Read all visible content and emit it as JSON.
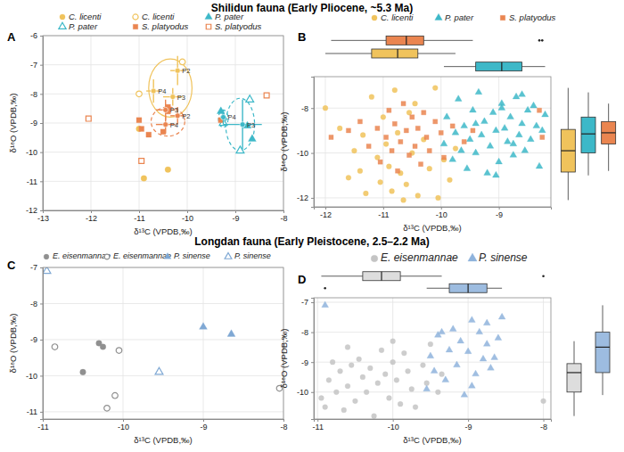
{
  "chart_data": [
    {
      "type": "scatter",
      "title": "Shilidun fauna (Early Pliocene, ~5.3 Ma)",
      "label": "A",
      "x_label": "δ¹³C (VPDB,‰)",
      "y_label": "δ¹⁸O (VPDB,‰)",
      "xlim": [
        -13,
        -8
      ],
      "xticks": [
        -13,
        -12,
        -11,
        -10,
        -9,
        -8
      ],
      "ylim": [
        -12,
        -6
      ],
      "yticks": [
        -12,
        -11,
        -10,
        -9,
        -8,
        -7,
        -6
      ],
      "grid": true,
      "legend": "top",
      "series": [
        {
          "name": "C. licenti",
          "color": "#F0C35C",
          "marker": "circle",
          "x": [
            -11.0,
            -10.9,
            -10.4
          ],
          "y": [
            -9.2,
            -10.9,
            -10.6
          ]
        },
        {
          "name": "C. licenti",
          "color": "#F0C35C",
          "marker": "open-circle",
          "x": [
            -11.0,
            -10.1
          ],
          "y": [
            -8.0,
            -6.9
          ]
        },
        {
          "name": "P. pater",
          "color": "#3DB8C8",
          "marker": "triangle",
          "x": [
            -9.3,
            -9.25,
            -8.75,
            -8.65
          ],
          "y": [
            -8.6,
            -8.8,
            -9.1,
            -9.55
          ]
        },
        {
          "name": "P. pater",
          "color": "#3DB8C8",
          "marker": "open-triangle",
          "x": [
            -8.7,
            -8.9,
            -9.25
          ],
          "y": [
            -8.2,
            -9.95,
            -9.0
          ]
        },
        {
          "name": "S. platyodus",
          "color": "#EA8550",
          "marker": "square",
          "x": [
            -11.0,
            -10.95,
            -10.8,
            -10.5,
            -10.4,
            -10.4,
            -9.3
          ],
          "y": [
            -8.9,
            -9.2,
            -9.4,
            -9.3,
            -8.6,
            -8.45,
            -8.9
          ]
        },
        {
          "name": "S. platyodus",
          "color": "#EA8550",
          "marker": "open-square",
          "x": [
            -12.05,
            -10.95,
            -8.35
          ],
          "y": [
            -8.85,
            -10.3,
            -8.05
          ]
        }
      ],
      "groups": [
        {
          "label": "P2",
          "color": "#F0C35C",
          "x": -10.2,
          "y": -7.2,
          "xerr": 0.15,
          "yerr": 0.5
        },
        {
          "label": "P3",
          "color": "#F0C35C",
          "x": -10.3,
          "y": -8.1,
          "xerr": 0.2,
          "yerr": 0.3
        },
        {
          "label": "P4",
          "color": "#F0C35C",
          "x": -10.7,
          "y": -7.9,
          "xerr": 0.15,
          "yerr": 0.4
        },
        {
          "label": "P2",
          "color": "#EA8550",
          "x": -10.2,
          "y": -8.75,
          "xerr": 0.15,
          "yerr": 0.3
        },
        {
          "label": "P3",
          "color": "#EA8550",
          "x": -10.45,
          "y": -8.55,
          "xerr": 0.2,
          "yerr": 0.35
        },
        {
          "label": "P4",
          "color": "#EA8550",
          "x": -10.45,
          "y": -9.05,
          "xerr": 0.2,
          "yerr": 0.3
        },
        {
          "label": "P3",
          "color": "#3DB8C8",
          "x": -8.85,
          "y": -9.05,
          "xerr": 0.4,
          "yerr": 0.85
        },
        {
          "label": "P4",
          "color": "#3DB8C8",
          "x": -9.25,
          "y": -8.8,
          "xerr": 0.05,
          "yerr": 0.25
        }
      ],
      "ellipses": [
        {
          "color": "#F0C35C",
          "line_style": "solid",
          "cx": -10.35,
          "cy": -7.8,
          "rx": 0.45,
          "ry": 1.0
        },
        {
          "color": "#EA8550",
          "line_style": "dashed",
          "cx": -10.4,
          "cy": -8.95,
          "rx": 0.35,
          "ry": 0.5
        },
        {
          "color": "#3DB8C8",
          "line_style": "dashed",
          "cx": -8.9,
          "cy": -9.05,
          "rx": 0.3,
          "ry": 0.9
        },
        {
          "color": "#3DB8C8",
          "line_style": "dashed",
          "cx": -9.25,
          "cy": -8.85,
          "rx": 0.1,
          "ry": 0.3
        }
      ]
    },
    {
      "type": "scatter",
      "label": "B",
      "x_label": "δ¹³C (VPDB,‰)",
      "y_label": "δ¹⁸O (VPDB,‰)",
      "xlim": [
        -12.2,
        -8.1
      ],
      "xticks": [
        -12,
        -11,
        -10,
        -9
      ],
      "ylim": [
        -12.4,
        -6.6
      ],
      "yticks": [
        -12,
        -10,
        -8
      ],
      "grid": true,
      "legend": "top",
      "series": [
        {
          "name": "C. licenti",
          "color": "#F0C35C",
          "marker": "circle",
          "x": [
            -12.0,
            -11.75,
            -11.5,
            -11.4,
            -11.3,
            -11.2,
            -11.1,
            -11.05,
            -11.0,
            -10.95,
            -10.9,
            -10.85,
            -10.8,
            -10.75,
            -10.7,
            -10.6,
            -10.55,
            -10.5,
            -10.45,
            -10.4,
            -10.3,
            -10.2,
            -10.1,
            -10.05,
            -9.95,
            -9.85,
            -9.75,
            -11.6,
            -11.35,
            -10.65
          ],
          "y": [
            -8.0,
            -8.9,
            -9.9,
            -10.8,
            -11.8,
            -7.5,
            -10.2,
            -11.3,
            -8.4,
            -9.6,
            -10.6,
            -11.7,
            -7.2,
            -9.1,
            -10.9,
            -11.4,
            -8.2,
            -10.0,
            -7.8,
            -11.9,
            -9.4,
            -10.7,
            -7.1,
            -12.0,
            -10.3,
            -11.2,
            -9.8,
            -11.1,
            -9.2,
            -12.1
          ]
        },
        {
          "name": "P. pater",
          "color": "#3DB8C8",
          "marker": "triangle",
          "x": [
            -9.95,
            -9.9,
            -9.8,
            -9.75,
            -9.7,
            -9.6,
            -9.55,
            -9.5,
            -9.45,
            -9.4,
            -9.35,
            -9.3,
            -9.25,
            -9.2,
            -9.15,
            -9.1,
            -9.05,
            -9.0,
            -8.95,
            -8.9,
            -8.85,
            -8.8,
            -8.75,
            -8.7,
            -8.65,
            -8.6,
            -8.55,
            -8.5,
            -8.45,
            -8.4,
            -8.35,
            -8.3,
            -8.25,
            -8.2,
            -9.65,
            -9.05,
            -8.6,
            -8.95,
            -9.4,
            -8.75
          ],
          "y": [
            -9.6,
            -8.4,
            -10.3,
            -9.1,
            -7.6,
            -8.8,
            -10.7,
            -9.4,
            -8.1,
            -10.0,
            -7.3,
            -9.2,
            -8.6,
            -10.9,
            -9.7,
            -8.2,
            -9.0,
            -10.4,
            -7.8,
            -8.9,
            -9.5,
            -8.4,
            -10.1,
            -7.5,
            -9.2,
            -8.7,
            -9.9,
            -8.1,
            -9.4,
            -7.9,
            -8.8,
            -10.6,
            -9.0,
            -8.3,
            -9.9,
            -11.0,
            -7.4,
            -8.0,
            -8.7,
            -9.6
          ]
        },
        {
          "name": "S. platyodus",
          "color": "#EA8550",
          "marker": "square",
          "x": [
            -11.9,
            -11.6,
            -11.4,
            -11.25,
            -11.1,
            -11.05,
            -10.95,
            -10.9,
            -10.85,
            -10.8,
            -10.75,
            -10.7,
            -10.65,
            -10.6,
            -10.55,
            -10.5,
            -10.45,
            -10.4,
            -10.35,
            -10.3,
            -10.25,
            -10.2,
            -10.1,
            -10.0,
            -9.95,
            -9.8,
            -9.6,
            -9.45,
            -8.3,
            -8.25
          ],
          "y": [
            -9.3,
            -9.0,
            -8.6,
            -9.7,
            -8.9,
            -10.4,
            -9.3,
            -8.1,
            -9.9,
            -8.7,
            -10.8,
            -9.5,
            -7.8,
            -9.0,
            -10.1,
            -8.4,
            -9.7,
            -8.9,
            -10.5,
            -8.2,
            -9.3,
            -9.9,
            -8.6,
            -9.1,
            -10.2,
            -8.8,
            -9.5,
            -9.0,
            -8.1,
            -9.3
          ]
        }
      ],
      "x_boxplots": [
        {
          "color": "#EA8550",
          "min": -11.9,
          "q1": -10.95,
          "median": -10.6,
          "q3": -10.3,
          "max": -9.45,
          "outliers": [
            -8.3,
            -8.25
          ]
        },
        {
          "color": "#F0C35C",
          "min": -12.0,
          "q1": -11.2,
          "median": -10.75,
          "q3": -10.4,
          "max": -9.75,
          "outliers": []
        },
        {
          "color": "#3DB8C8",
          "min": -9.95,
          "q1": -9.4,
          "median": -8.95,
          "q3": -8.6,
          "max": -8.2,
          "outliers": []
        }
      ],
      "y_boxplots": [
        {
          "color": "#F0C35C",
          "min": -12.1,
          "q1": -10.85,
          "median": -9.9,
          "q3": -8.95,
          "max": -7.1,
          "outliers": []
        },
        {
          "color": "#3DB8C8",
          "min": -11.0,
          "q1": -10.0,
          "median": -9.15,
          "q3": -8.4,
          "max": -7.3,
          "outliers": []
        },
        {
          "color": "#EA8550",
          "min": -10.8,
          "q1": -9.6,
          "median": -9.1,
          "q3": -8.6,
          "max": -7.8,
          "outliers": []
        }
      ]
    },
    {
      "type": "scatter",
      "title": "Longdan fauna (Early Pleistocene, 2.5–2.2 Ma)",
      "label": "C",
      "x_label": "δ¹³C (VPDB,‰)",
      "y_label": "δ¹⁸O (VPDB,‰)",
      "xlim": [
        -11,
        -8
      ],
      "xticks": [
        -11,
        -10,
        -9,
        -8
      ],
      "ylim": [
        -11.2,
        -7
      ],
      "yticks": [
        -11,
        -10,
        -9,
        -8,
        -7
      ],
      "grid": true,
      "legend": "top",
      "series": [
        {
          "name": "E. eisenmannae",
          "color": "#909090",
          "marker": "circle",
          "x": [
            -10.5,
            -10.3,
            -10.25
          ],
          "y": [
            -9.9,
            -9.1,
            -9.2
          ]
        },
        {
          "name": "E. eisenmannae",
          "color": "#909090",
          "marker": "open-circle",
          "x": [
            -10.85,
            -10.05,
            -10.1,
            -10.2,
            -8.05
          ],
          "y": [
            -9.2,
            -9.3,
            -10.55,
            -10.9,
            -10.35
          ]
        },
        {
          "name": "P. sinense",
          "color": "#7FA8D4",
          "marker": "triangle",
          "x": [
            -9.0,
            -8.65
          ],
          "y": [
            -8.65,
            -8.85
          ]
        },
        {
          "name": "P. sinense",
          "color": "#7FA8D4",
          "marker": "open-triangle",
          "x": [
            -10.95,
            -9.55
          ],
          "y": [
            -7.1,
            -9.9
          ]
        }
      ]
    },
    {
      "type": "scatter",
      "label": "D",
      "x_label": "δ¹³C (VPDB,‰)",
      "y_label": "δ¹⁸O (VPDB,‰)",
      "xlim": [
        -11.05,
        -7.9
      ],
      "xticks": [
        -11,
        -10,
        -9,
        -8
      ],
      "ylim": [
        -10.9,
        -6.85
      ],
      "yticks": [
        -10,
        -9,
        -8,
        -7
      ],
      "grid": true,
      "legend": "top",
      "series": [
        {
          "name": "E. eisenmannae",
          "color": "#C4C4C4",
          "marker": "circle",
          "x": [
            -10.95,
            -10.9,
            -10.85,
            -10.8,
            -10.75,
            -10.7,
            -10.65,
            -10.6,
            -10.55,
            -10.5,
            -10.45,
            -10.4,
            -10.35,
            -10.3,
            -10.25,
            -10.2,
            -10.15,
            -10.1,
            -10.05,
            -10.0,
            -9.95,
            -9.9,
            -9.85,
            -9.8,
            -9.75,
            -9.7,
            -9.6,
            -9.55,
            -9.5,
            -9.4,
            -9.35,
            -10.6,
            -10.0,
            -8.0
          ],
          "y": [
            -10.2,
            -10.5,
            -9.6,
            -9.0,
            -10.0,
            -9.3,
            -10.6,
            -9.8,
            -9.1,
            -10.3,
            -8.9,
            -9.5,
            -10.0,
            -9.2,
            -10.8,
            -9.7,
            -8.6,
            -9.4,
            -10.2,
            -9.0,
            -9.6,
            -10.4,
            -8.7,
            -9.3,
            -9.9,
            -10.5,
            -9.1,
            -9.7,
            -8.4,
            -10.0,
            -9.4,
            -8.5,
            -8.3,
            -10.3
          ]
        },
        {
          "name": "P. sinense",
          "color": "#8FB3DC",
          "marker": "triangle",
          "x": [
            -10.9,
            -9.55,
            -9.5,
            -9.45,
            -9.4,
            -9.3,
            -9.25,
            -9.2,
            -9.15,
            -9.1,
            -9.05,
            -9.0,
            -8.95,
            -8.9,
            -8.85,
            -8.8,
            -8.75,
            -8.7,
            -8.65,
            -8.6,
            -8.55,
            -8.75,
            -9.35,
            -8.95
          ],
          "y": [
            -7.1,
            -9.9,
            -8.8,
            -9.3,
            -8.1,
            -9.6,
            -8.6,
            -7.9,
            -9.1,
            -8.3,
            -10.1,
            -8.65,
            -7.6,
            -9.4,
            -8.0,
            -8.9,
            -7.7,
            -9.2,
            -8.85,
            -8.2,
            -7.5,
            -8.4,
            -8.0,
            -9.8
          ]
        }
      ],
      "x_boxplots": [
        {
          "color": "#DDDDDD",
          "min": -10.95,
          "q1": -10.4,
          "median": -10.15,
          "q3": -9.9,
          "max": -9.35,
          "outliers": [
            -8.0
          ]
        },
        {
          "color": "#9DBCE0",
          "min": -9.55,
          "q1": -9.25,
          "median": -9.0,
          "q3": -8.75,
          "max": -8.55,
          "outliers": [
            -10.9
          ]
        }
      ],
      "y_boxplots": [
        {
          "color": "#DDDDDD",
          "min": -10.8,
          "q1": -10.0,
          "median": -9.35,
          "q3": -9.05,
          "max": -8.3,
          "outliers": []
        },
        {
          "color": "#9DBCE0",
          "min": -10.1,
          "q1": -9.35,
          "median": -8.5,
          "q3": -8.0,
          "max": -7.1,
          "outliers": []
        }
      ]
    }
  ]
}
